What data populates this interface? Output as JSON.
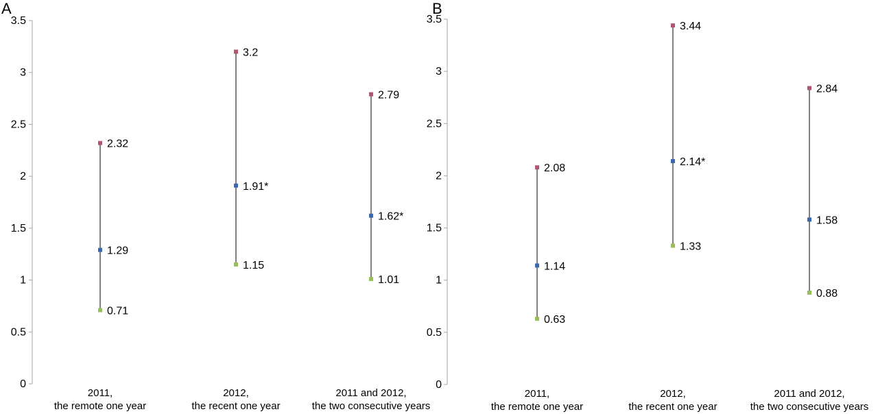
{
  "chart_data": [
    {
      "panel_label": "A",
      "type": "scatter",
      "ylim": [
        0,
        3.5
      ],
      "y_ticks": [
        "0",
        "0.5",
        "1",
        "1.5",
        "2",
        "2.5",
        "3",
        "3.5"
      ],
      "categories": [
        [
          "2011,",
          "the remote one year"
        ],
        [
          "2012,",
          "the recent one year"
        ],
        [
          "2011 and 2012,",
          "the two consecutive years"
        ]
      ],
      "series": [
        {
          "role": "high",
          "color": "#b0566e",
          "values": [
            2.32,
            3.2,
            2.79
          ],
          "labels": [
            "2.32",
            "3.2",
            "2.79"
          ]
        },
        {
          "role": "estimate",
          "color": "#3a68b0",
          "values": [
            1.29,
            1.91,
            1.62
          ],
          "labels": [
            "1.29",
            "1.91*",
            "1.62*"
          ]
        },
        {
          "role": "low",
          "color": "#98c05a",
          "values": [
            0.71,
            1.15,
            1.01
          ],
          "labels": [
            "0.71",
            "1.15",
            "1.01"
          ]
        }
      ]
    },
    {
      "panel_label": "B",
      "type": "scatter",
      "ylim": [
        0,
        3.5
      ],
      "y_ticks": [
        "0",
        "0.5",
        "1",
        "1.5",
        "2",
        "2.5",
        "3",
        "3.5"
      ],
      "categories": [
        [
          "2011,",
          "the remote one year"
        ],
        [
          "2012,",
          "the recent one year"
        ],
        [
          "2011 and 2012,",
          "the two consecutive years"
        ]
      ],
      "series": [
        {
          "role": "high",
          "color": "#b0566e",
          "values": [
            2.08,
            3.44,
            2.84
          ],
          "labels": [
            "2.08",
            "3.44",
            "2.84"
          ]
        },
        {
          "role": "estimate",
          "color": "#3a68b0",
          "values": [
            1.14,
            2.14,
            1.58
          ],
          "labels": [
            "1.14",
            "2.14*",
            "1.58"
          ]
        },
        {
          "role": "low",
          "color": "#98c05a",
          "values": [
            0.63,
            1.33,
            0.88
          ],
          "labels": [
            "0.63",
            "1.33",
            "0.88"
          ]
        }
      ]
    }
  ]
}
